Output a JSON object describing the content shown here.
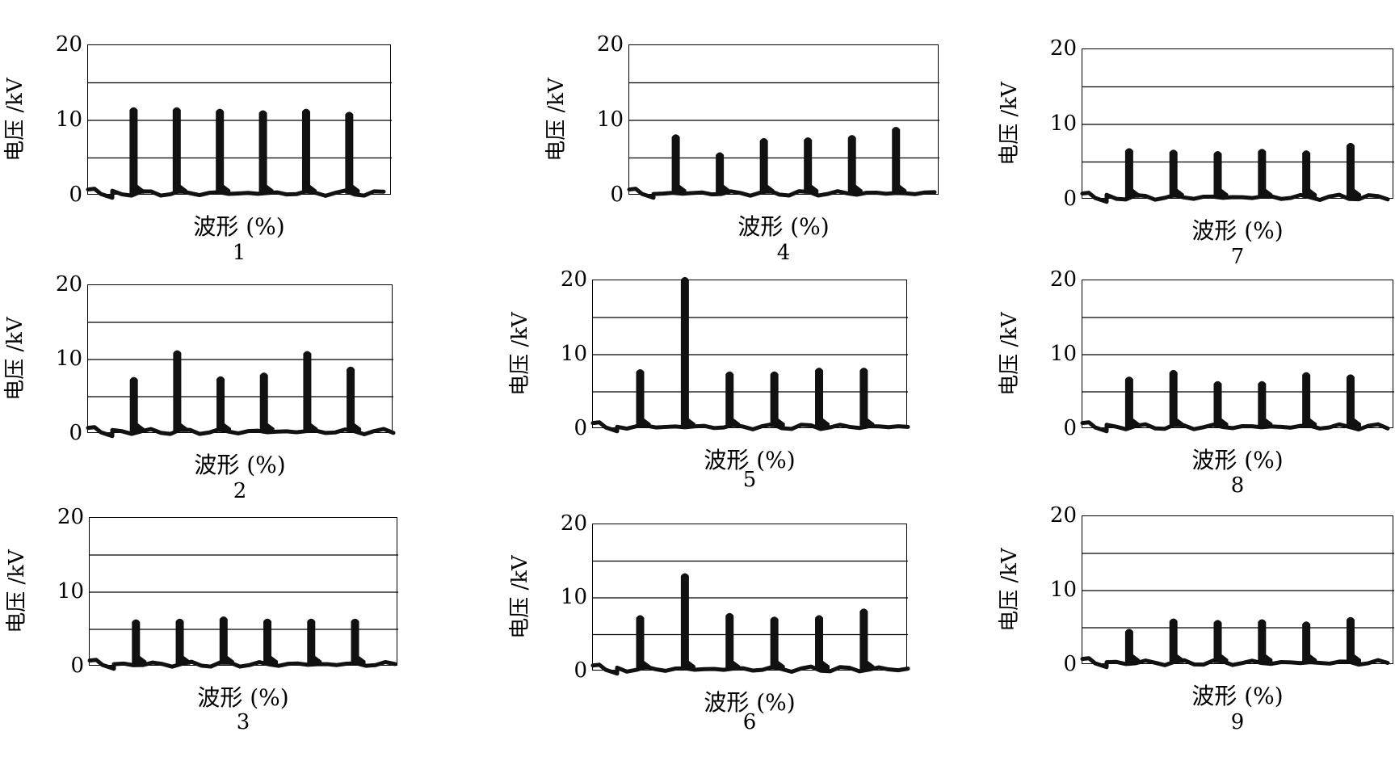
{
  "chart_data": [
    {
      "id": "1",
      "type": "line",
      "caption": "1",
      "xlabel": "波形 (%)",
      "ylabel": "电压 /kV",
      "yticks": [
        "0",
        "10",
        "20"
      ],
      "ylim": [
        0,
        20
      ],
      "grid_values": [
        5,
        10,
        15
      ],
      "series": [
        {
          "peaks": [
            11.8,
            11.8,
            11.6,
            11.4,
            11.6,
            11.2
          ]
        }
      ]
    },
    {
      "id": "2",
      "type": "line",
      "caption": "2",
      "xlabel": "波形 (%)",
      "ylabel": "电压 /kV",
      "yticks": [
        "0",
        "10",
        "20"
      ],
      "ylim": [
        0,
        20
      ],
      "grid_values": [
        5,
        10,
        15
      ],
      "series": [
        {
          "peaks": [
            7.7,
            11.3,
            7.8,
            8.3,
            11.2,
            9.1
          ]
        }
      ]
    },
    {
      "id": "3",
      "type": "line",
      "caption": "3",
      "xlabel": "波形 (%)",
      "ylabel": "电压 /kV",
      "yticks": [
        "0",
        "10",
        "20"
      ],
      "ylim": [
        0,
        20
      ],
      "grid_values": [
        5,
        10,
        15
      ],
      "series": [
        {
          "peaks": [
            6.4,
            6.5,
            6.8,
            6.5,
            6.5,
            6.5
          ]
        }
      ]
    },
    {
      "id": "4",
      "type": "line",
      "caption": "4",
      "xlabel": "波形 (%)",
      "ylabel": "电压 /kV",
      "yticks": [
        "0",
        "10",
        "20"
      ],
      "ylim": [
        0,
        20
      ],
      "grid_values": [
        5,
        10,
        15
      ],
      "series": [
        {
          "peaks": [
            8.2,
            5.8,
            7.7,
            7.8,
            8.1,
            9.2
          ]
        }
      ]
    },
    {
      "id": "5",
      "type": "line",
      "caption": "5",
      "xlabel": "波形 (%)",
      "ylabel": "电压 /kV",
      "yticks": [
        "0",
        "10",
        "20"
      ],
      "ylim": [
        0,
        20
      ],
      "grid_values": [
        5,
        10,
        15
      ],
      "series": [
        {
          "peaks": [
            8.1,
            20.5,
            7.8,
            7.8,
            8.3,
            8.3
          ]
        }
      ]
    },
    {
      "id": "6",
      "type": "line",
      "caption": "6",
      "xlabel": "波形 (%)",
      "ylabel": "电压 /kV",
      "yticks": [
        "0",
        "10",
        "20"
      ],
      "ylim": [
        0,
        20
      ],
      "grid_values": [
        5,
        10,
        15
      ],
      "series": [
        {
          "peaks": [
            7.7,
            13.4,
            8.0,
            7.5,
            7.7,
            8.6
          ]
        }
      ]
    },
    {
      "id": "7",
      "type": "line",
      "caption": "7",
      "xlabel": "波形 (%)",
      "ylabel": "电压 /kV",
      "yticks": [
        "0",
        "10",
        "20"
      ],
      "ylim": [
        0,
        20
      ],
      "grid_values": [
        5,
        10,
        15
      ],
      "series": [
        {
          "peaks": [
            6.9,
            6.7,
            6.5,
            6.8,
            6.6,
            7.6
          ]
        }
      ]
    },
    {
      "id": "8",
      "type": "line",
      "caption": "8",
      "xlabel": "波形 (%)",
      "ylabel": "电压 /kV",
      "yticks": [
        "0",
        "10",
        "20"
      ],
      "ylim": [
        0,
        20
      ],
      "grid_values": [
        5,
        10,
        15
      ],
      "series": [
        {
          "peaks": [
            7.1,
            8.0,
            6.5,
            6.5,
            7.7,
            7.4
          ]
        }
      ]
    },
    {
      "id": "9",
      "type": "line",
      "caption": "9",
      "xlabel": "波形 (%)",
      "ylabel": "电压 /kV",
      "yticks": [
        "0",
        "10",
        "20"
      ],
      "ylim": [
        0,
        20
      ],
      "grid_values": [
        5,
        10,
        15
      ],
      "series": [
        {
          "peaks": [
            4.9,
            6.3,
            6.1,
            6.2,
            5.9,
            6.5
          ]
        }
      ]
    }
  ]
}
